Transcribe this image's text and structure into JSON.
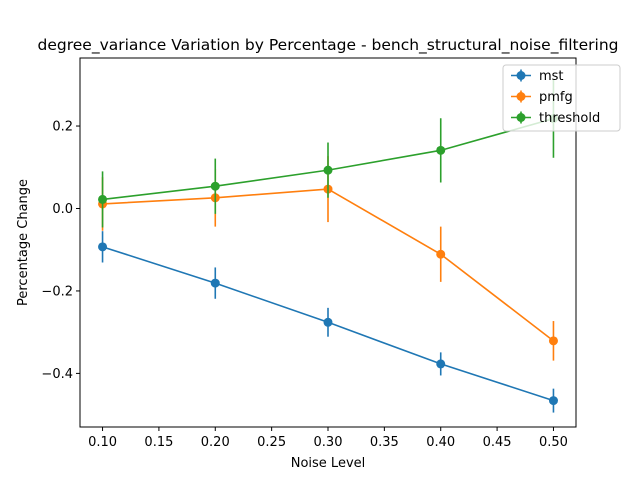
{
  "chart_data": {
    "type": "line",
    "title": "degree_variance Variation by Percentage - bench_structural_noise_filtering",
    "xlabel": "Noise Level",
    "ylabel": "Percentage Change",
    "xlim": [
      0.08,
      0.52
    ],
    "ylim": [
      -0.53,
      0.365
    ],
    "x_ticks": [
      0.1,
      0.15,
      0.2,
      0.25,
      0.3,
      0.35,
      0.4,
      0.45,
      0.5
    ],
    "x_tick_labels": [
      "0.10",
      "0.15",
      "0.20",
      "0.25",
      "0.30",
      "0.35",
      "0.40",
      "0.45",
      "0.50"
    ],
    "y_ticks": [
      -0.4,
      -0.2,
      0.0,
      0.2
    ],
    "y_tick_labels": [
      "−0.4",
      "−0.2",
      "0.0",
      "0.2"
    ],
    "x": [
      0.1,
      0.2,
      0.3,
      0.4,
      0.5
    ],
    "legend_position": "top-right",
    "grid": false,
    "series": [
      {
        "name": "mst",
        "color": "#1f77b4",
        "values": [
          -0.093,
          -0.181,
          -0.276,
          -0.377,
          -0.466
        ],
        "errors": [
          0.038,
          0.038,
          0.035,
          0.028,
          0.029
        ]
      },
      {
        "name": "pmfg",
        "color": "#ff7f0e",
        "values": [
          0.011,
          0.026,
          0.047,
          -0.111,
          -0.321
        ],
        "errors": [
          0.065,
          0.07,
          0.08,
          0.067,
          0.048
        ]
      },
      {
        "name": "threshold",
        "color": "#2ca02c",
        "values": [
          0.022,
          0.054,
          0.093,
          0.141,
          0.218
        ],
        "errors": [
          0.068,
          0.067,
          0.067,
          0.078,
          0.095
        ]
      }
    ]
  }
}
